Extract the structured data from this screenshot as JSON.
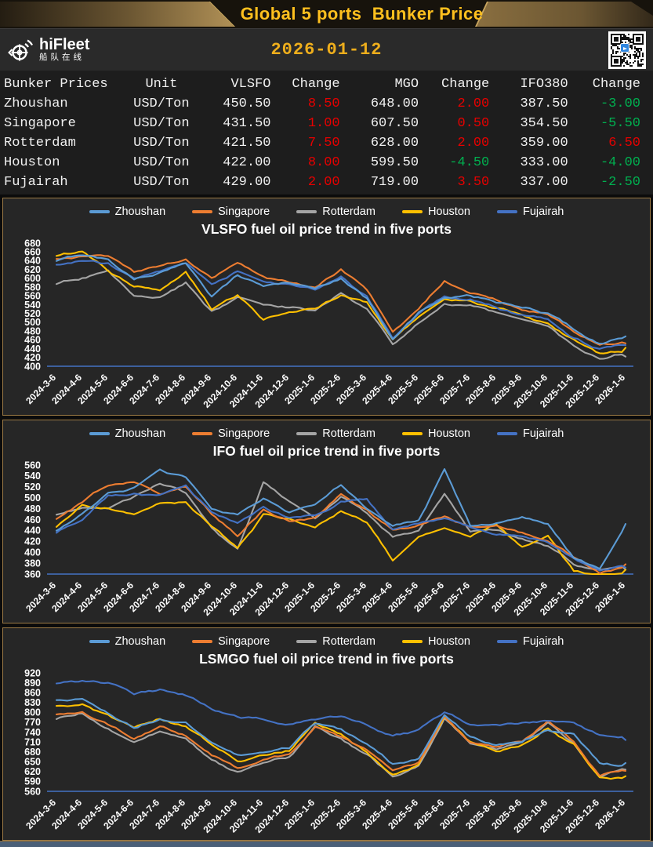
{
  "header": {
    "title": "Global 5 ports  Bunker Price"
  },
  "info_bar": {
    "brand_name": "hiFleet",
    "brand_subtitle": "船队在线",
    "date": "2026-01-12"
  },
  "colors": {
    "up": "#e60000",
    "down": "#00b050",
    "gold_title": "#ffc01e",
    "gold_date": "#eeae1c",
    "panel_border": "#9c7a45",
    "axis": "#4472c4",
    "footer": "#4a5f78",
    "zhoushan": "#5b9bd5",
    "singapore": "#ed7d31",
    "rotterdam": "#a5a5a5",
    "houston": "#ffc000",
    "fujairah": "#4472c4"
  },
  "table": {
    "headers": [
      "Bunker Prices",
      "Unit",
      "VLSFO",
      "Change",
      "MGO",
      "Change",
      "IFO380",
      "Change"
    ],
    "rows": [
      {
        "port": "Zhoushan",
        "unit": "USD/Ton",
        "vlsfo": "450.50",
        "vlsfo_change": "8.50",
        "mgo": "648.00",
        "mgo_change": "2.00",
        "ifo380": "387.50",
        "ifo380_change": "-3.00"
      },
      {
        "port": "Singapore",
        "unit": "USD/Ton",
        "vlsfo": "431.50",
        "vlsfo_change": "1.00",
        "mgo": "607.50",
        "mgo_change": "0.50",
        "ifo380": "354.50",
        "ifo380_change": "-5.50"
      },
      {
        "port": "Rotterdam",
        "unit": "USD/Ton",
        "vlsfo": "421.50",
        "vlsfo_change": "7.50",
        "mgo": "628.00",
        "mgo_change": "2.00",
        "ifo380": "359.00",
        "ifo380_change": "6.50"
      },
      {
        "port": "Houston",
        "unit": "USD/Ton",
        "vlsfo": "422.00",
        "vlsfo_change": "8.00",
        "mgo": "599.50",
        "mgo_change": "-4.50",
        "ifo380": "333.00",
        "ifo380_change": "-4.00"
      },
      {
        "port": "Fujairah",
        "unit": "USD/Ton",
        "vlsfo": "429.00",
        "vlsfo_change": "2.00",
        "mgo": "719.00",
        "mgo_change": "3.50",
        "ifo380": "337.00",
        "ifo380_change": "-2.50"
      }
    ]
  },
  "chart_data": [
    {
      "type": "line",
      "title": "VLSFO fuel oil price trend in five ports",
      "legend_position": "top",
      "grid": false,
      "ylim": [
        400,
        680
      ],
      "ytick_step": 20,
      "x_labels": [
        "2024-3-6",
        "2024-4-6",
        "2024-5-6",
        "2024-6-6",
        "2024-7-6",
        "2024-8-6",
        "2024-9-6",
        "2024-10-6",
        "2024-11-6",
        "2024-12-6",
        "2025-1-6",
        "2025-2-6",
        "2025-3-6",
        "2025-4-6",
        "2025-5-6",
        "2025-6-6",
        "2025-7-6",
        "2025-8-6",
        "2025-9-6",
        "2025-10-6",
        "2025-11-6",
        "2025-12-6",
        "2026-1-6"
      ],
      "series": [
        {
          "name": "Zhoushan",
          "color": "#5b9bd5",
          "values": [
            638,
            652,
            640,
            598,
            615,
            632,
            562,
            608,
            585,
            592,
            578,
            605,
            558,
            472,
            528,
            560,
            562,
            548,
            532,
            520,
            482,
            452,
            468
          ]
        },
        {
          "name": "Singapore",
          "color": "#ed7d31",
          "values": [
            642,
            650,
            645,
            606,
            622,
            636,
            590,
            626,
            600,
            585,
            572,
            612,
            565,
            468,
            522,
            585,
            558,
            542,
            522,
            512,
            472,
            448,
            452
          ]
        },
        {
          "name": "Rotterdam",
          "color": "#a5a5a5",
          "values": [
            588,
            602,
            622,
            560,
            552,
            586,
            522,
            548,
            530,
            525,
            518,
            556,
            520,
            446,
            498,
            540,
            532,
            512,
            496,
            482,
            436,
            406,
            422
          ]
        },
        {
          "name": "Houston",
          "color": "#ffc000",
          "values": [
            652,
            662,
            618,
            585,
            576,
            612,
            526,
            556,
            502,
            522,
            532,
            562,
            546,
            456,
            502,
            542,
            542,
            526,
            512,
            496,
            462,
            432,
            442
          ]
        },
        {
          "name": "Fujairah",
          "color": "#4472c4",
          "values": [
            632,
            646,
            636,
            594,
            612,
            626,
            576,
            606,
            582,
            576,
            566,
            600,
            556,
            462,
            516,
            552,
            548,
            536,
            516,
            506,
            466,
            442,
            448
          ]
        }
      ]
    },
    {
      "type": "line",
      "title": "IFO fuel oil price trend in five ports",
      "legend_position": "top",
      "grid": false,
      "ylim": [
        360,
        560
      ],
      "ytick_step": 20,
      "x_labels": [
        "2024-3-6",
        "2024-4-6",
        "2024-5-6",
        "2024-6-6",
        "2024-7-6",
        "2024-8-6",
        "2024-9-6",
        "2024-10-6",
        "2024-11-6",
        "2024-12-6",
        "2025-1-6",
        "2025-2-6",
        "2025-3-6",
        "2025-4-6",
        "2025-5-6",
        "2025-6-6",
        "2025-7-6",
        "2025-8-6",
        "2025-9-6",
        "2025-10-6",
        "2025-11-6",
        "2025-12-6",
        "2026-1-6"
      ],
      "series": [
        {
          "name": "Zhoushan",
          "color": "#5b9bd5",
          "values": [
            438,
            472,
            512,
            522,
            548,
            532,
            472,
            462,
            492,
            466,
            482,
            518,
            472,
            442,
            452,
            545,
            442,
            448,
            465,
            452,
            392,
            372,
            452
          ]
        },
        {
          "name": "Singapore",
          "color": "#ed7d31",
          "values": [
            462,
            492,
            522,
            532,
            512,
            522,
            472,
            432,
            482,
            462,
            468,
            512,
            482,
            446,
            456,
            472,
            452,
            456,
            442,
            428,
            398,
            368,
            378
          ]
        },
        {
          "name": "Rotterdam",
          "color": "#a5a5a5",
          "values": [
            468,
            482,
            478,
            496,
            522,
            506,
            442,
            402,
            525,
            486,
            456,
            496,
            466,
            422,
            432,
            500,
            432,
            436,
            422,
            408,
            372,
            360,
            368
          ]
        },
        {
          "name": "Houston",
          "color": "#ffc000",
          "values": [
            448,
            486,
            482,
            472,
            492,
            496,
            452,
            412,
            472,
            466,
            452,
            482,
            462,
            392,
            436,
            452,
            436,
            458,
            416,
            432,
            366,
            360,
            368
          ]
        },
        {
          "name": "Fujairah",
          "color": "#4472c4",
          "values": [
            436,
            462,
            506,
            512,
            506,
            516,
            466,
            446,
            476,
            456,
            462,
            486,
            492,
            436,
            446,
            458,
            442,
            428,
            426,
            416,
            386,
            364,
            372
          ]
        }
      ]
    },
    {
      "type": "line",
      "title": "LSMGO fuel oil price trend in five ports",
      "legend_position": "top",
      "grid": false,
      "ylim": [
        560,
        920
      ],
      "ytick_step": 30,
      "x_labels": [
        "2024-3-6",
        "2024-4-6",
        "2024-5-6",
        "2024-6-6",
        "2024-7-6",
        "2024-8-6",
        "2024-9-6",
        "2024-10-6",
        "2024-11-6",
        "2024-12-6",
        "2025-1-6",
        "2025-2-6",
        "2025-3-6",
        "2025-4-6",
        "2025-5-6",
        "2025-6-6",
        "2025-7-6",
        "2025-8-6",
        "2025-9-6",
        "2025-10-6",
        "2025-11-6",
        "2025-12-6",
        "2026-1-6"
      ],
      "series": [
        {
          "name": "Zhoushan",
          "color": "#5b9bd5",
          "values": [
            836,
            842,
            806,
            762,
            792,
            776,
            722,
            682,
            692,
            702,
            772,
            752,
            706,
            642,
            662,
            792,
            722,
            702,
            716,
            752,
            742,
            656,
            646
          ]
        },
        {
          "name": "Singapore",
          "color": "#ed7d31",
          "values": [
            796,
            812,
            772,
            732,
            766,
            742,
            682,
            642,
            666,
            682,
            762,
            722,
            672,
            612,
            636,
            782,
            702,
            682,
            702,
            766,
            702,
            602,
            622
          ]
        },
        {
          "name": "Rotterdam",
          "color": "#a5a5a5",
          "values": [
            782,
            802,
            762,
            722,
            756,
            732,
            666,
            626,
            656,
            672,
            756,
            716,
            666,
            602,
            632,
            776,
            706,
            676,
            696,
            756,
            696,
            596,
            626
          ]
        },
        {
          "name": "Houston",
          "color": "#ffc000",
          "values": [
            822,
            826,
            786,
            742,
            772,
            752,
            692,
            646,
            662,
            676,
            766,
            732,
            676,
            616,
            642,
            786,
            712,
            686,
            706,
            762,
            712,
            606,
            606
          ]
        },
        {
          "name": "Fujairah",
          "color": "#4472c4",
          "values": [
            888,
            892,
            880,
            846,
            856,
            842,
            800,
            782,
            772,
            762,
            776,
            786,
            762,
            732,
            746,
            790,
            756,
            752,
            756,
            762,
            756,
            722,
            716
          ]
        }
      ]
    }
  ]
}
